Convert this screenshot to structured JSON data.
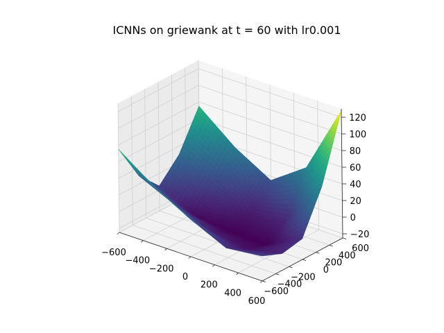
{
  "chart_data": {
    "type": "surface3d",
    "title": "ICNNs on griewank at t = 60 with lr0.001",
    "xlabel": "",
    "ylabel": "",
    "zlabel": "",
    "xlim": [
      -600,
      600
    ],
    "ylim": [
      -600,
      600
    ],
    "zlim": [
      -25,
      130
    ],
    "x_ticks": [
      -600,
      -400,
      -200,
      0,
      200,
      400,
      600
    ],
    "y_ticks": [
      -600,
      -400,
      -200,
      0,
      200,
      400,
      600
    ],
    "z_ticks": [
      -20,
      0,
      20,
      40,
      60,
      80,
      100,
      120
    ],
    "colormap": "viridis",
    "grid": true,
    "x": [
      -600,
      -300,
      0,
      300,
      600
    ],
    "y": [
      -600,
      -300,
      0,
      300,
      600
    ],
    "z": [
      [
        75,
        30,
        5,
        30,
        75
      ],
      [
        44,
        10,
        -18,
        8,
        40
      ],
      [
        20,
        -8,
        -22,
        -10,
        15
      ],
      [
        0,
        -15,
        -22,
        -5,
        45
      ],
      [
        5,
        -5,
        0,
        50,
        128
      ]
    ]
  }
}
